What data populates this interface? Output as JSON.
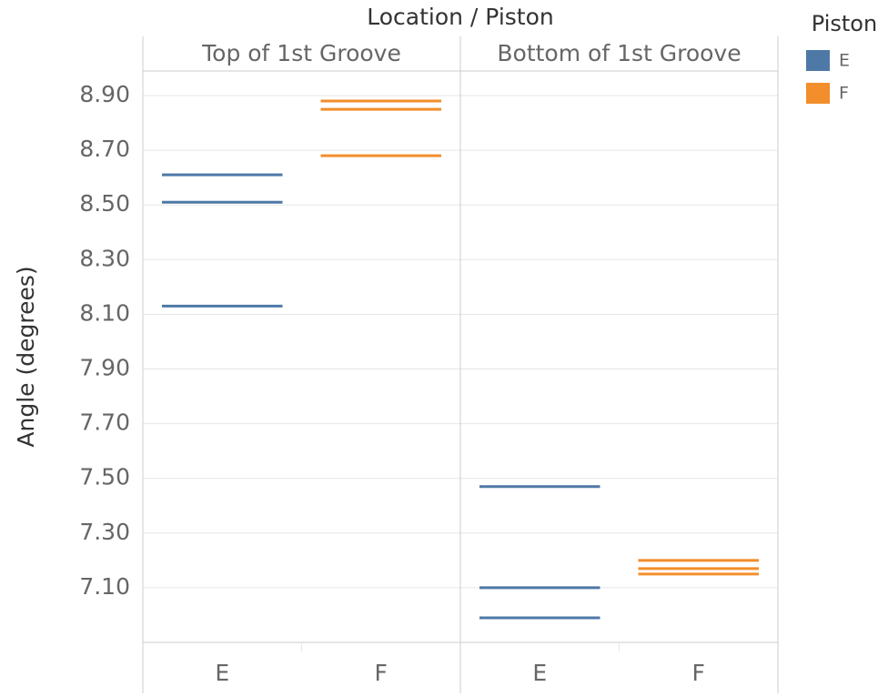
{
  "chart_data": {
    "type": "tick",
    "title": "Location / Piston",
    "y_label": "Angle (degrees)",
    "legend_title": "Piston",
    "ylim": [
      6.9,
      8.99
    ],
    "yticks": [
      {
        "value": 7.1,
        "label": "7.10"
      },
      {
        "value": 7.3,
        "label": "7.30"
      },
      {
        "value": 7.5,
        "label": "7.50"
      },
      {
        "value": 7.7,
        "label": "7.70"
      },
      {
        "value": 7.9,
        "label": "7.90"
      },
      {
        "value": 8.1,
        "label": "8.10"
      },
      {
        "value": 8.3,
        "label": "8.30"
      },
      {
        "value": 8.5,
        "label": "8.50"
      },
      {
        "value": 8.7,
        "label": "8.70"
      },
      {
        "value": 8.9,
        "label": "8.90"
      }
    ],
    "grid": true,
    "panels": [
      {
        "name": "Top of 1st Groove",
        "series": [
          {
            "name": "E",
            "color": "#4e79a7",
            "values": [
              8.61,
              8.51,
              8.13
            ]
          },
          {
            "name": "F",
            "color": "#f28e2b",
            "values": [
              8.88,
              8.85,
              8.68
            ]
          }
        ]
      },
      {
        "name": "Bottom of 1st Groove",
        "series": [
          {
            "name": "E",
            "color": "#4e79a7",
            "values": [
              7.47,
              7.1,
              6.99
            ]
          },
          {
            "name": "F",
            "color": "#f28e2b",
            "values": [
              7.2,
              7.17,
              7.15
            ]
          }
        ]
      }
    ]
  }
}
